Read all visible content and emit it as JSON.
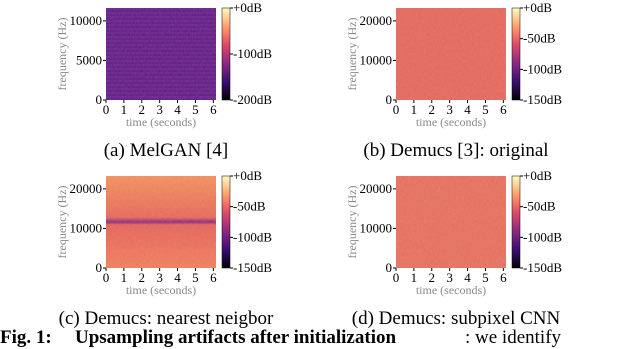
{
  "figure": {
    "panels": [
      {
        "ylabel": "frequency (Hz)",
        "xlabel": "time (seconds)",
        "yticks": [
          "0",
          "5000",
          "10000"
        ],
        "xticks": [
          "0",
          "1",
          "2",
          "3",
          "4",
          "5",
          "6"
        ],
        "colorbar": [
          "+0dB",
          "-100dB",
          "-200dB"
        ],
        "caption": "(a) MelGAN [4]"
      },
      {
        "ylabel": "frequency (Hz)",
        "xlabel": "time (seconds)",
        "yticks": [
          "0",
          "10000",
          "20000"
        ],
        "xticks": [
          "0",
          "1",
          "2",
          "3",
          "4",
          "5",
          "6"
        ],
        "colorbar": [
          "+0dB",
          "-50dB",
          "-100dB",
          "-150dB"
        ],
        "caption": "(b) Demucs [3]: original"
      },
      {
        "ylabel": "frequency (Hz)",
        "xlabel": "time (seconds)",
        "yticks": [
          "0",
          "10000",
          "20000"
        ],
        "xticks": [
          "0",
          "1",
          "2",
          "3",
          "4",
          "5",
          "6"
        ],
        "colorbar": [
          "+0dB",
          "-50dB",
          "-100dB",
          "-150dB"
        ],
        "caption": "(c) Demucs: nearest neigbor"
      },
      {
        "ylabel": "frequency (Hz)",
        "xlabel": "time (seconds)",
        "yticks": [
          "0",
          "10000",
          "20000"
        ],
        "xticks": [
          "0",
          "1",
          "2",
          "3",
          "4",
          "5",
          "6"
        ],
        "colorbar": [
          "+0dB",
          "-50dB",
          "-100dB",
          "-150dB"
        ],
        "caption": "(d) Demucs: subpixel CNN"
      }
    ],
    "caption_label": "Fig. 1:",
    "caption_title": "Upsampling artifacts after initialization",
    "caption_text": ": we identify"
  }
}
